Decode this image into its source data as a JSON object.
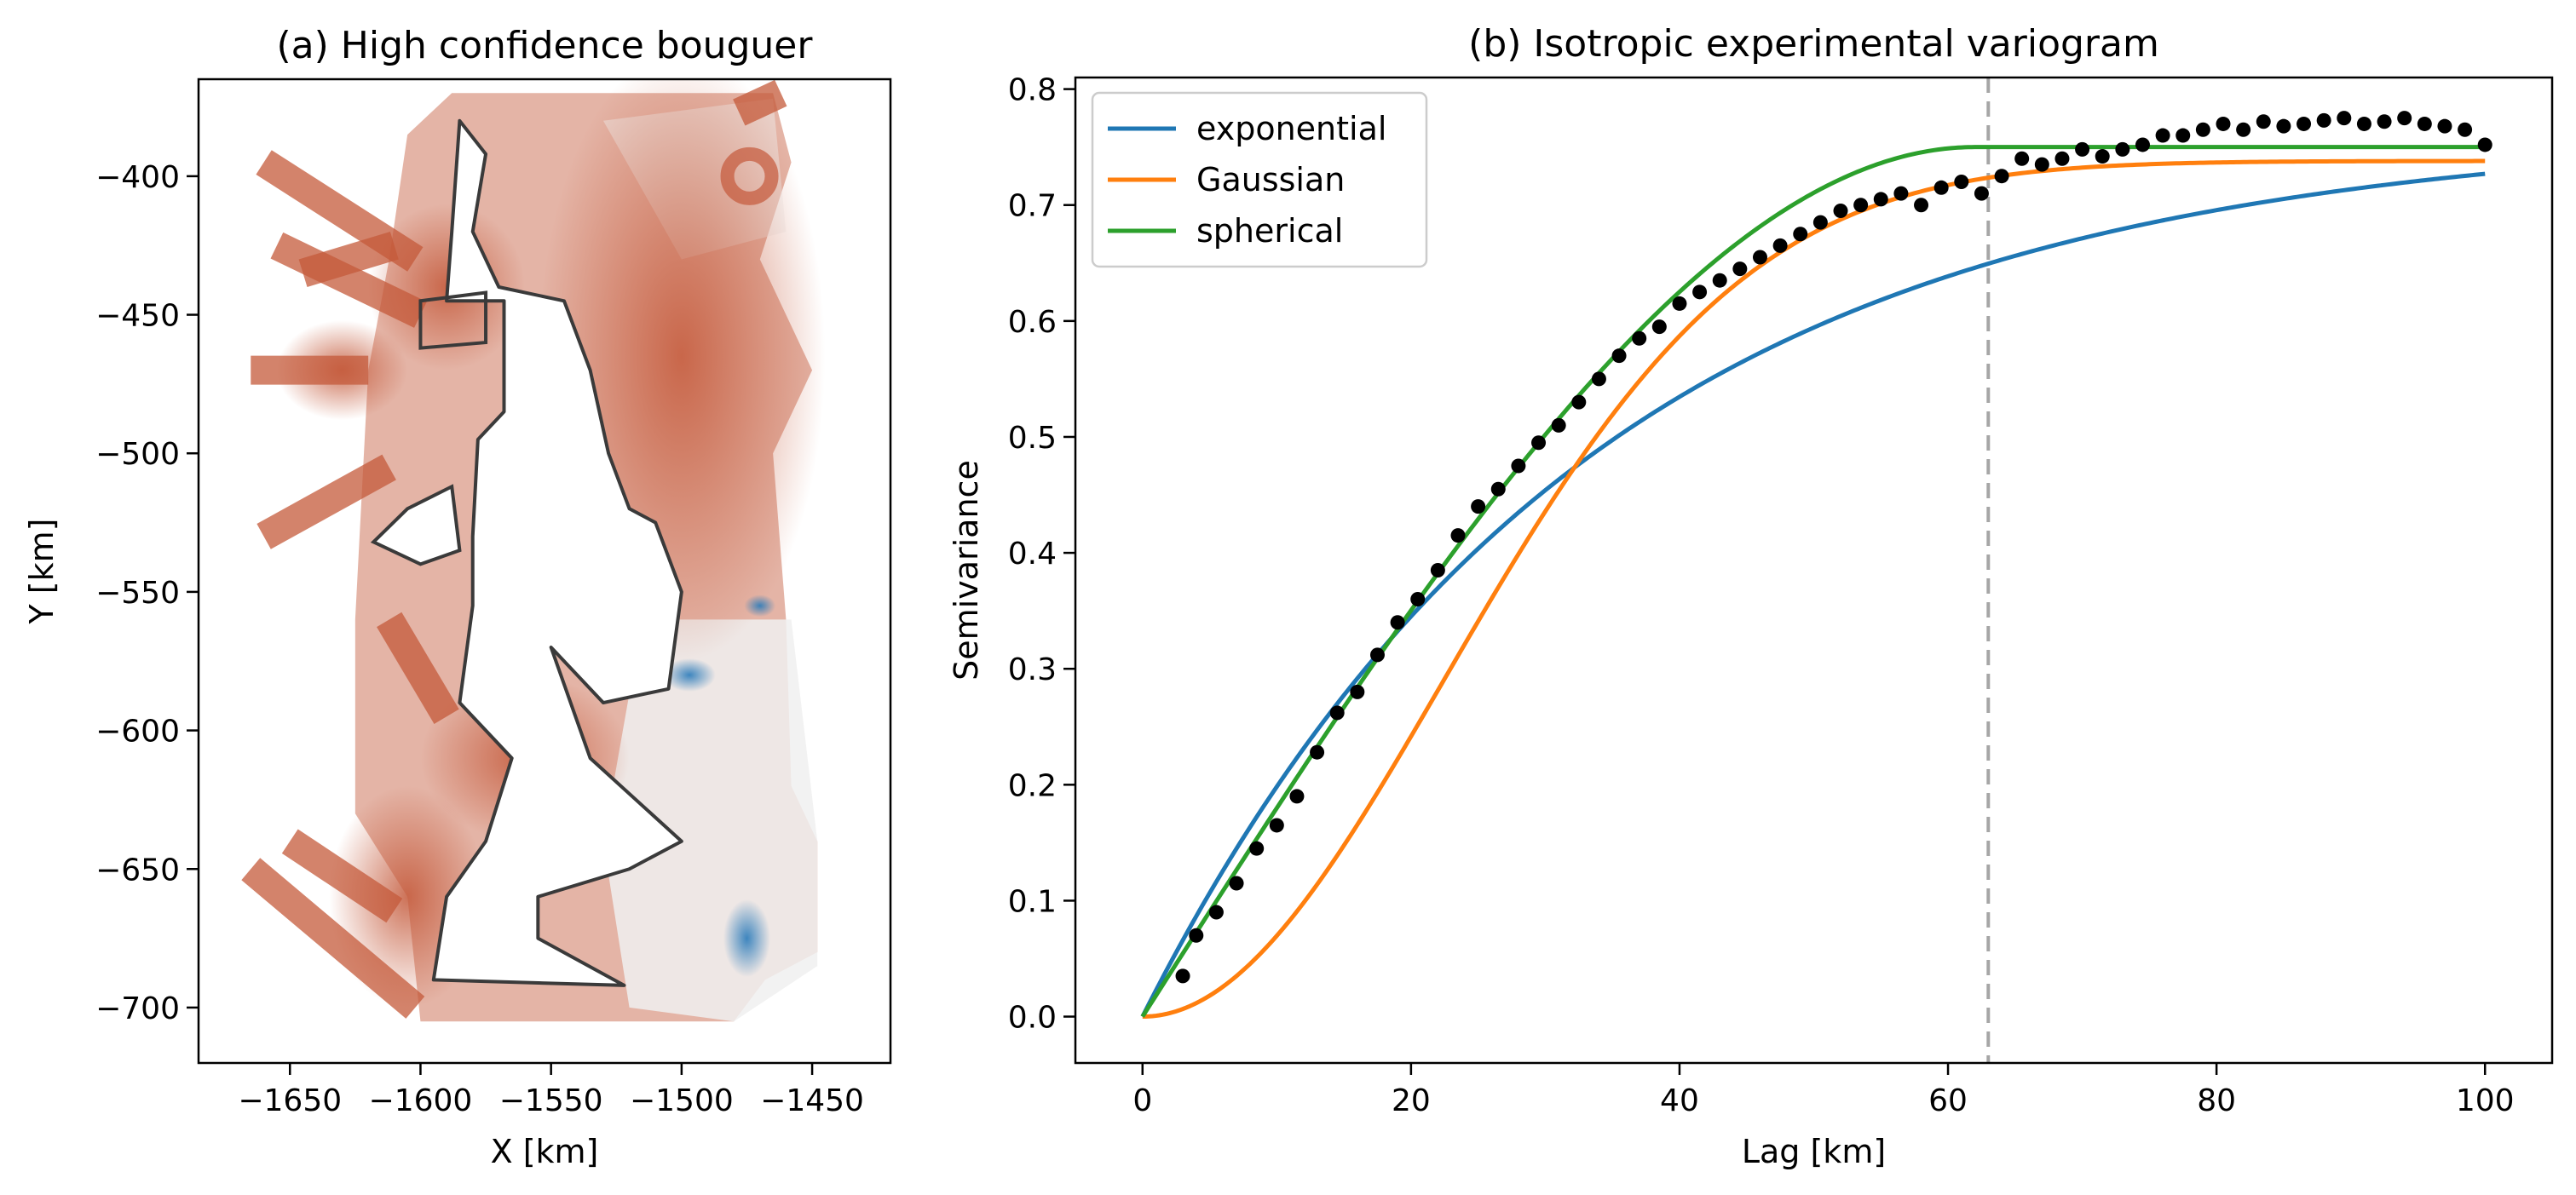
{
  "chart_data": [
    {
      "type": "heatmap",
      "title": "(a) High confidence bouguer",
      "xlabel": "X [km]",
      "ylabel": "Y [km]",
      "xlim": [
        -1685,
        -1420
      ],
      "ylim": [
        -720,
        -365
      ],
      "x_ticks": [
        "−1650",
        "−1600",
        "−1550",
        "−1500",
        "−1450"
      ],
      "y_ticks": [
        "−400",
        "−450",
        "−500",
        "−550",
        "−600",
        "−650",
        "−700"
      ],
      "x_tick_values": [
        -1650,
        -1600,
        -1550,
        -1500,
        -1450
      ],
      "y_tick_values": [
        -400,
        -450,
        -500,
        -550,
        -600,
        -650,
        -700
      ],
      "colormap": [
        "#2b7bba",
        "#f0f0f0",
        "#c4593a"
      ],
      "outline_color": "#3a3a3a",
      "legend": false,
      "grid": false
    },
    {
      "type": "scatter",
      "title": "(b) Isotropic experimental variogram",
      "xlabel": "Lag [km]",
      "ylabel": "Semivariance",
      "xlim": [
        -5,
        105
      ],
      "ylim": [
        -0.04,
        0.81
      ],
      "x_ticks": [
        "0",
        "20",
        "40",
        "60",
        "80",
        "100"
      ],
      "y_ticks": [
        "0.0",
        "0.1",
        "0.2",
        "0.3",
        "0.4",
        "0.5",
        "0.6",
        "0.7",
        "0.8"
      ],
      "x_tick_values": [
        0,
        20,
        40,
        60,
        80,
        100
      ],
      "y_tick_values": [
        0,
        0.1,
        0.2,
        0.3,
        0.4,
        0.5,
        0.6,
        0.7,
        0.8
      ],
      "legend": "top-left",
      "grid": false,
      "vline": {
        "x": 63,
        "color": "#a6a6a6",
        "style": "dashed"
      },
      "experimental_points": {
        "color": "#000000",
        "x": [
          3,
          4,
          5.5,
          7,
          8.5,
          10,
          11.5,
          13,
          14.5,
          16,
          17.5,
          19,
          20.5,
          22,
          23.5,
          25,
          26.5,
          28,
          29.5,
          31,
          32.5,
          34,
          35.5,
          37,
          38.5,
          40,
          41.5,
          43,
          44.5,
          46,
          47.5,
          49,
          50.5,
          52,
          53.5,
          55,
          56.5,
          58,
          59.5,
          61,
          62.5,
          64,
          65.5,
          67,
          68.5,
          70,
          71.5,
          73,
          74.5,
          76,
          77.5,
          79,
          80.5,
          82,
          83.5,
          85,
          86.5,
          88,
          89.5,
          91,
          92.5,
          94,
          95.5,
          97,
          98.5,
          100
        ],
        "y": [
          0.035,
          0.07,
          0.09,
          0.115,
          0.145,
          0.165,
          0.19,
          0.228,
          0.262,
          0.28,
          0.312,
          0.34,
          0.36,
          0.385,
          0.415,
          0.44,
          0.455,
          0.475,
          0.495,
          0.51,
          0.53,
          0.55,
          0.57,
          0.585,
          0.595,
          0.615,
          0.625,
          0.635,
          0.645,
          0.655,
          0.665,
          0.675,
          0.685,
          0.695,
          0.7,
          0.705,
          0.71,
          0.7,
          0.715,
          0.72,
          0.71,
          0.725,
          0.74,
          0.735,
          0.74,
          0.748,
          0.742,
          0.748,
          0.752,
          0.76,
          0.76,
          0.765,
          0.77,
          0.765,
          0.772,
          0.768,
          0.77,
          0.773,
          0.775,
          0.77,
          0.772,
          0.775,
          0.77,
          0.768,
          0.765,
          0.752
        ]
      },
      "series": [
        {
          "name": "exponential",
          "color": "#1f77b4",
          "model": "exponential",
          "sill": 0.765,
          "range": 100
        },
        {
          "name": "Gaussian",
          "color": "#ff7f0e",
          "model": "gaussian",
          "sill": 0.738,
          "range": 55
        },
        {
          "name": "spherical",
          "color": "#2ca02c",
          "model": "spherical",
          "sill": 0.75,
          "range": 62
        }
      ]
    }
  ]
}
